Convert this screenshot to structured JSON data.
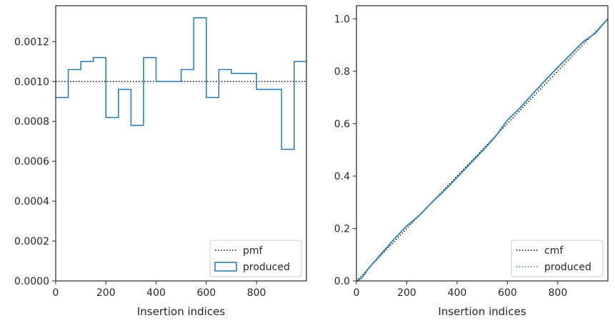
{
  "chart_data": [
    {
      "type": "histogram-step",
      "xlabel": "Insertion indices",
      "ylabel": "",
      "xlim": [
        0,
        999
      ],
      "ylim": [
        0,
        0.00138
      ],
      "xticks": [
        0,
        200,
        400,
        600,
        800
      ],
      "yticks": [
        0,
        0.0002,
        0.0004,
        0.0006,
        0.0008,
        0.001,
        0.0012
      ],
      "ytick_labels": [
        "0.0000",
        "0.0002",
        "0.0004",
        "0.0006",
        "0.0008",
        "0.0010",
        "0.0012"
      ],
      "bin_edges": [
        0,
        50,
        100,
        150,
        200,
        250,
        300,
        350,
        400,
        450,
        500,
        550,
        600,
        650,
        700,
        750,
        800,
        850,
        900,
        950,
        999
      ],
      "series": [
        {
          "name": "pmf",
          "style": "dotted",
          "color": "#000000",
          "x": [
            0,
            999
          ],
          "y": [
            0.001,
            0.001
          ]
        },
        {
          "name": "produced",
          "style": "step",
          "color": "#2f7fb0",
          "values": [
            0.00092,
            0.00106,
            0.0011,
            0.00112,
            0.00082,
            0.00096,
            0.00078,
            0.00112,
            0.001,
            0.001,
            0.00106,
            0.00132,
            0.00092,
            0.00106,
            0.00104,
            0.00104,
            0.00096,
            0.00096,
            0.00066,
            0.0011
          ]
        }
      ],
      "legend": {
        "placement": "lower-right",
        "entries": [
          "pmf",
          "produced"
        ]
      },
      "grid": false
    },
    {
      "type": "line",
      "xlabel": "Insertion indices",
      "ylabel": "",
      "xlim": [
        0,
        999
      ],
      "ylim": [
        0,
        1.05
      ],
      "xticks": [
        0,
        200,
        400,
        600,
        800
      ],
      "yticks": [
        0,
        0.2,
        0.4,
        0.6,
        0.8,
        1.0
      ],
      "ytick_labels": [
        "0.0",
        "0.2",
        "0.4",
        "0.6",
        "0.8",
        "1.0"
      ],
      "series": [
        {
          "name": "cmf",
          "style": "dotted",
          "color": "#000000",
          "x": [
            0,
            999
          ],
          "y": [
            0,
            1.0
          ]
        },
        {
          "name": "produced",
          "style": "line",
          "color": "#2f7fb0",
          "x": [
            0,
            20,
            50,
            100,
            150,
            200,
            250,
            300,
            350,
            400,
            450,
            500,
            550,
            600,
            650,
            700,
            750,
            800,
            850,
            900,
            950,
            980,
            999
          ],
          "y": [
            0,
            0.01,
            0.05,
            0.105,
            0.16,
            0.21,
            0.25,
            0.3,
            0.345,
            0.395,
            0.445,
            0.495,
            0.548,
            0.614,
            0.66,
            0.713,
            0.765,
            0.815,
            0.863,
            0.912,
            0.945,
            0.98,
            1.0
          ]
        }
      ],
      "legend": {
        "placement": "lower-right",
        "entries": [
          "cmf",
          "produced"
        ]
      },
      "grid": false
    }
  ]
}
